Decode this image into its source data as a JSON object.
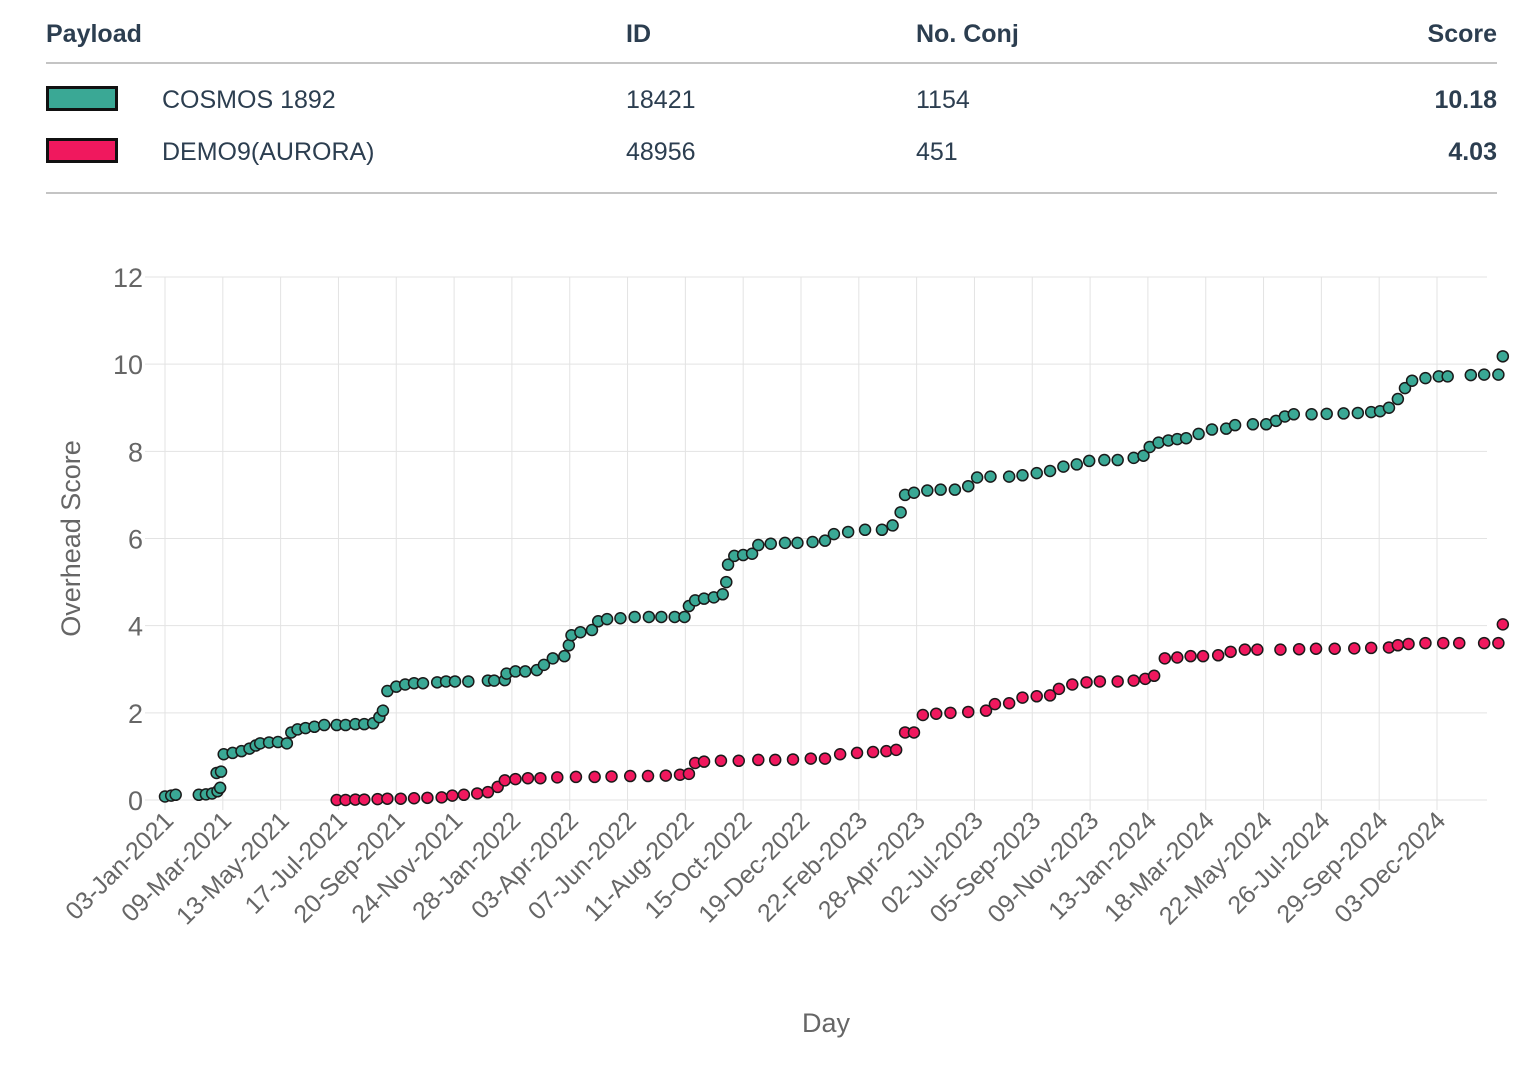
{
  "table": {
    "headers": {
      "payload": "Payload",
      "id": "ID",
      "conj": "No. Conj",
      "score": "Score"
    },
    "rows": [
      {
        "name": "COSMOS 1892",
        "id": "18421",
        "conj": "1154",
        "score": "10.18",
        "color": "#3aa895"
      },
      {
        "name": "DEMO9(AURORA)",
        "id": "48956",
        "conj": "451",
        "score": "4.03",
        "color": "#f0185e"
      }
    ]
  },
  "chart_data": {
    "type": "scatter",
    "xlabel": "Day",
    "ylabel": "Overhead Score",
    "ylim": [
      0,
      12
    ],
    "yticks": [
      0,
      2,
      4,
      6,
      8,
      10,
      12
    ],
    "xlim": [
      "2021-01-03",
      "2025-02-23"
    ],
    "xticks": [
      "03-Jan-2021",
      "09-Mar-2021",
      "13-May-2021",
      "17-Jul-2021",
      "20-Sep-2021",
      "24-Nov-2021",
      "28-Jan-2022",
      "03-Apr-2022",
      "07-Jun-2022",
      "11-Aug-2022",
      "15-Oct-2022",
      "19-Dec-2022",
      "22-Feb-2023",
      "28-Apr-2023",
      "02-Jul-2023",
      "05-Sep-2023",
      "09-Nov-2023",
      "13-Jan-2024",
      "18-Mar-2024",
      "22-May-2024",
      "26-Jul-2024",
      "29-Sep-2024",
      "03-Dec-2024"
    ],
    "grid": true,
    "series": [
      {
        "name": "COSMOS 1892",
        "color": "#3aa895",
        "points": [
          [
            "2021-01-03",
            0.08
          ],
          [
            "2021-01-10",
            0.1
          ],
          [
            "2021-01-15",
            0.12
          ],
          [
            "2021-02-10",
            0.12
          ],
          [
            "2021-02-18",
            0.13
          ],
          [
            "2021-02-25",
            0.15
          ],
          [
            "2021-03-03",
            0.2
          ],
          [
            "2021-03-06",
            0.28
          ],
          [
            "2021-03-02",
            0.62
          ],
          [
            "2021-03-07",
            0.65
          ],
          [
            "2021-03-10",
            1.05
          ],
          [
            "2021-03-20",
            1.08
          ],
          [
            "2021-03-30",
            1.12
          ],
          [
            "2021-04-08",
            1.18
          ],
          [
            "2021-04-15",
            1.25
          ],
          [
            "2021-04-20",
            1.3
          ],
          [
            "2021-04-30",
            1.32
          ],
          [
            "2021-05-10",
            1.33
          ],
          [
            "2021-05-20",
            1.3
          ],
          [
            "2021-05-25",
            1.55
          ],
          [
            "2021-06-01",
            1.62
          ],
          [
            "2021-06-10",
            1.65
          ],
          [
            "2021-06-20",
            1.68
          ],
          [
            "2021-07-01",
            1.72
          ],
          [
            "2021-07-15",
            1.72
          ],
          [
            "2021-07-25",
            1.72
          ],
          [
            "2021-08-05",
            1.74
          ],
          [
            "2021-08-15",
            1.74
          ],
          [
            "2021-08-25",
            1.76
          ],
          [
            "2021-09-01",
            1.9
          ],
          [
            "2021-09-05",
            2.05
          ],
          [
            "2021-09-10",
            2.5
          ],
          [
            "2021-09-20",
            2.6
          ],
          [
            "2021-09-30",
            2.65
          ],
          [
            "2021-10-10",
            2.68
          ],
          [
            "2021-10-20",
            2.68
          ],
          [
            "2021-11-05",
            2.7
          ],
          [
            "2021-11-15",
            2.72
          ],
          [
            "2021-11-25",
            2.72
          ],
          [
            "2021-12-10",
            2.72
          ],
          [
            "2022-01-01",
            2.74
          ],
          [
            "2022-01-08",
            2.74
          ],
          [
            "2022-01-20",
            2.75
          ],
          [
            "2022-01-22",
            2.9
          ],
          [
            "2022-02-01",
            2.95
          ],
          [
            "2022-02-12",
            2.95
          ],
          [
            "2022-02-25",
            2.98
          ],
          [
            "2022-03-05",
            3.1
          ],
          [
            "2022-03-15",
            3.25
          ],
          [
            "2022-03-28",
            3.3
          ],
          [
            "2022-04-02",
            3.55
          ],
          [
            "2022-04-05",
            3.78
          ],
          [
            "2022-04-15",
            3.85
          ],
          [
            "2022-04-28",
            3.9
          ],
          [
            "2022-05-05",
            4.1
          ],
          [
            "2022-05-15",
            4.15
          ],
          [
            "2022-05-30",
            4.17
          ],
          [
            "2022-06-15",
            4.2
          ],
          [
            "2022-07-01",
            4.2
          ],
          [
            "2022-07-15",
            4.2
          ],
          [
            "2022-07-30",
            4.2
          ],
          [
            "2022-08-10",
            4.2
          ],
          [
            "2022-08-15",
            4.45
          ],
          [
            "2022-08-22",
            4.58
          ],
          [
            "2022-09-01",
            4.62
          ],
          [
            "2022-09-12",
            4.65
          ],
          [
            "2022-09-22",
            4.72
          ],
          [
            "2022-09-26",
            5.0
          ],
          [
            "2022-09-28",
            5.4
          ],
          [
            "2022-10-05",
            5.6
          ],
          [
            "2022-10-15",
            5.62
          ],
          [
            "2022-10-25",
            5.65
          ],
          [
            "2022-11-01",
            5.85
          ],
          [
            "2022-11-15",
            5.88
          ],
          [
            "2022-12-01",
            5.9
          ],
          [
            "2022-12-15",
            5.9
          ],
          [
            "2023-01-01",
            5.92
          ],
          [
            "2023-01-15",
            5.95
          ],
          [
            "2023-01-25",
            6.1
          ],
          [
            "2023-02-10",
            6.15
          ],
          [
            "2023-03-01",
            6.2
          ],
          [
            "2023-03-20",
            6.2
          ],
          [
            "2023-04-01",
            6.3
          ],
          [
            "2023-04-10",
            6.6
          ],
          [
            "2023-04-15",
            7.0
          ],
          [
            "2023-04-25",
            7.05
          ],
          [
            "2023-05-10",
            7.1
          ],
          [
            "2023-05-25",
            7.12
          ],
          [
            "2023-06-10",
            7.12
          ],
          [
            "2023-06-25",
            7.2
          ],
          [
            "2023-07-05",
            7.4
          ],
          [
            "2023-07-20",
            7.42
          ],
          [
            "2023-08-10",
            7.42
          ],
          [
            "2023-08-25",
            7.45
          ],
          [
            "2023-09-10",
            7.5
          ],
          [
            "2023-09-25",
            7.55
          ],
          [
            "2023-10-10",
            7.65
          ],
          [
            "2023-10-25",
            7.7
          ],
          [
            "2023-11-08",
            7.78
          ],
          [
            "2023-11-25",
            7.8
          ],
          [
            "2023-12-10",
            7.8
          ],
          [
            "2023-12-28",
            7.85
          ],
          [
            "2024-01-08",
            7.9
          ],
          [
            "2024-01-15",
            8.1
          ],
          [
            "2024-01-25",
            8.2
          ],
          [
            "2024-02-05",
            8.25
          ],
          [
            "2024-02-15",
            8.28
          ],
          [
            "2024-02-25",
            8.3
          ],
          [
            "2024-03-10",
            8.4
          ],
          [
            "2024-03-25",
            8.5
          ],
          [
            "2024-04-10",
            8.52
          ],
          [
            "2024-04-20",
            8.6
          ],
          [
            "2024-05-10",
            8.62
          ],
          [
            "2024-05-25",
            8.62
          ],
          [
            "2024-06-05",
            8.7
          ],
          [
            "2024-06-15",
            8.8
          ],
          [
            "2024-06-25",
            8.85
          ],
          [
            "2024-07-15",
            8.85
          ],
          [
            "2024-08-01",
            8.86
          ],
          [
            "2024-08-20",
            8.87
          ],
          [
            "2024-09-05",
            8.88
          ],
          [
            "2024-09-20",
            8.9
          ],
          [
            "2024-09-30",
            8.92
          ],
          [
            "2024-10-10",
            9.0
          ],
          [
            "2024-10-20",
            9.2
          ],
          [
            "2024-10-28",
            9.45
          ],
          [
            "2024-11-05",
            9.62
          ],
          [
            "2024-11-20",
            9.68
          ],
          [
            "2024-12-05",
            9.72
          ],
          [
            "2024-12-15",
            9.72
          ],
          [
            "2025-01-10",
            9.75
          ],
          [
            "2025-01-25",
            9.76
          ],
          [
            "2025-02-10",
            9.76
          ],
          [
            "2025-02-15",
            10.18
          ]
        ]
      },
      {
        "name": "DEMO9(AURORA)",
        "color": "#f0185e",
        "points": [
          [
            "2021-07-15",
            0.0
          ],
          [
            "2021-07-25",
            0.0
          ],
          [
            "2021-08-05",
            0.01
          ],
          [
            "2021-08-15",
            0.01
          ],
          [
            "2021-08-30",
            0.02
          ],
          [
            "2021-09-10",
            0.03
          ],
          [
            "2021-09-25",
            0.03
          ],
          [
            "2021-10-10",
            0.04
          ],
          [
            "2021-10-25",
            0.05
          ],
          [
            "2021-11-10",
            0.06
          ],
          [
            "2021-11-22",
            0.1
          ],
          [
            "2021-12-05",
            0.12
          ],
          [
            "2021-12-20",
            0.15
          ],
          [
            "2022-01-01",
            0.18
          ],
          [
            "2022-01-12",
            0.3
          ],
          [
            "2022-01-20",
            0.45
          ],
          [
            "2022-02-01",
            0.48
          ],
          [
            "2022-02-15",
            0.5
          ],
          [
            "2022-03-01",
            0.5
          ],
          [
            "2022-03-20",
            0.52
          ],
          [
            "2022-04-10",
            0.53
          ],
          [
            "2022-05-01",
            0.53
          ],
          [
            "2022-05-20",
            0.54
          ],
          [
            "2022-06-10",
            0.55
          ],
          [
            "2022-06-30",
            0.55
          ],
          [
            "2022-07-20",
            0.56
          ],
          [
            "2022-08-05",
            0.58
          ],
          [
            "2022-08-15",
            0.6
          ],
          [
            "2022-08-22",
            0.85
          ],
          [
            "2022-09-01",
            0.88
          ],
          [
            "2022-09-20",
            0.9
          ],
          [
            "2022-10-10",
            0.9
          ],
          [
            "2022-11-01",
            0.92
          ],
          [
            "2022-11-20",
            0.92
          ],
          [
            "2022-12-10",
            0.93
          ],
          [
            "2022-12-30",
            0.95
          ],
          [
            "2023-01-15",
            0.95
          ],
          [
            "2023-02-01",
            1.05
          ],
          [
            "2023-02-20",
            1.08
          ],
          [
            "2023-03-10",
            1.1
          ],
          [
            "2023-03-25",
            1.12
          ],
          [
            "2023-04-05",
            1.15
          ],
          [
            "2023-04-15",
            1.55
          ],
          [
            "2023-04-25",
            1.55
          ],
          [
            "2023-05-05",
            1.95
          ],
          [
            "2023-05-20",
            1.98
          ],
          [
            "2023-06-05",
            2.0
          ],
          [
            "2023-06-25",
            2.02
          ],
          [
            "2023-07-15",
            2.05
          ],
          [
            "2023-07-25",
            2.2
          ],
          [
            "2023-08-10",
            2.22
          ],
          [
            "2023-08-25",
            2.35
          ],
          [
            "2023-09-10",
            2.38
          ],
          [
            "2023-09-25",
            2.4
          ],
          [
            "2023-10-05",
            2.55
          ],
          [
            "2023-10-20",
            2.65
          ],
          [
            "2023-11-05",
            2.7
          ],
          [
            "2023-11-20",
            2.72
          ],
          [
            "2023-12-10",
            2.72
          ],
          [
            "2023-12-28",
            2.74
          ],
          [
            "2024-01-10",
            2.78
          ],
          [
            "2024-01-20",
            2.85
          ],
          [
            "2024-02-01",
            3.25
          ],
          [
            "2024-02-15",
            3.27
          ],
          [
            "2024-03-01",
            3.3
          ],
          [
            "2024-03-15",
            3.3
          ],
          [
            "2024-04-01",
            3.32
          ],
          [
            "2024-04-15",
            3.4
          ],
          [
            "2024-05-01",
            3.45
          ],
          [
            "2024-05-15",
            3.45
          ],
          [
            "2024-06-10",
            3.45
          ],
          [
            "2024-07-01",
            3.46
          ],
          [
            "2024-07-20",
            3.47
          ],
          [
            "2024-08-10",
            3.47
          ],
          [
            "2024-09-01",
            3.48
          ],
          [
            "2024-09-20",
            3.49
          ],
          [
            "2024-10-10",
            3.5
          ],
          [
            "2024-10-20",
            3.55
          ],
          [
            "2024-11-01",
            3.58
          ],
          [
            "2024-11-20",
            3.6
          ],
          [
            "2024-12-10",
            3.6
          ],
          [
            "2024-12-28",
            3.6
          ],
          [
            "2025-01-25",
            3.6
          ],
          [
            "2025-02-10",
            3.6
          ],
          [
            "2025-02-15",
            4.03
          ]
        ]
      }
    ]
  }
}
